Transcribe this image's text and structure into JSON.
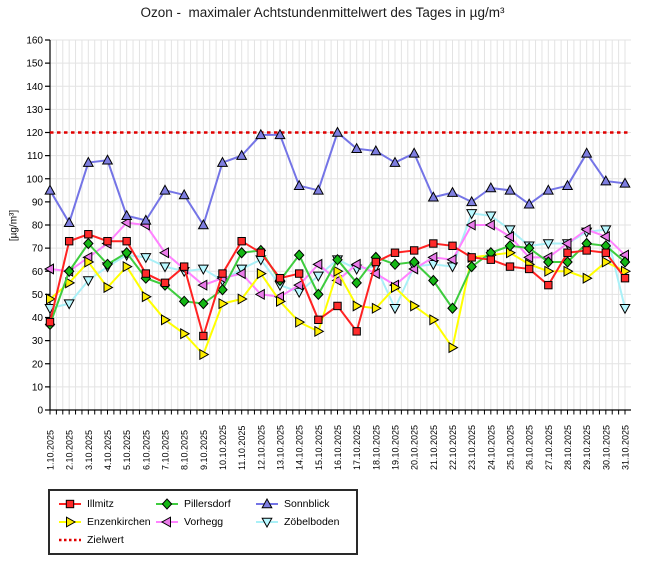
{
  "chart_data": {
    "type": "line",
    "title": "Ozon -  maximaler Achtstundenmittelwert des Tages in µg/m³",
    "ylabel": "[µg/m³]",
    "ylim": [
      0,
      160
    ],
    "ytick_step": 10,
    "grid": true,
    "legend_position": "bottom-left",
    "x": [
      "1.10.2025",
      "2.10.2025",
      "3.10.2025",
      "4.10.2025",
      "5.10.2025",
      "6.10.2025",
      "7.10.2025",
      "8.10.2025",
      "9.10.2025",
      "10.10.2025",
      "11.10.2025",
      "12.10.2025",
      "13.10.2025",
      "14.10.2025",
      "15.10.2025",
      "16.10.2025",
      "17.10.2025",
      "18.10.2025",
      "19.10.2025",
      "20.10.2025",
      "21.10.2025",
      "22.10.2025",
      "23.10.2025",
      "24.10.2025",
      "25.10.2025",
      "26.10.2025",
      "27.10.2025",
      "28.10.2025",
      "29.10.2025",
      "30.10.2025",
      "31.10.2025"
    ],
    "target_line": {
      "label": "Zielwert",
      "value": 120,
      "color": "#e00000",
      "style": "dotted"
    },
    "series": [
      {
        "name": "Illmitz",
        "marker": "square",
        "color": "#ff2222",
        "marker_color": "#ff2a2a",
        "values": [
          38,
          73,
          76,
          73,
          73,
          59,
          55,
          62,
          32,
          59,
          73,
          68,
          57,
          59,
          39,
          45,
          34,
          64,
          68,
          69,
          72,
          71,
          66,
          65,
          62,
          61,
          54,
          68,
          69,
          68,
          57
        ]
      },
      {
        "name": "Enzenkirchen",
        "marker": "triangle-right",
        "color": "#ffff00",
        "marker_color": "#ffee00",
        "values": [
          48,
          55,
          64,
          53,
          62,
          49,
          39,
          33,
          24,
          46,
          48,
          59,
          47,
          38,
          34,
          60,
          45,
          44,
          53,
          45,
          39,
          27,
          66,
          67,
          68,
          63,
          60,
          60,
          57,
          64,
          60
        ]
      },
      {
        "name": "Pillersdorf",
        "marker": "diamond",
        "color": "#3ecc3e",
        "marker_color": "#14b714",
        "values": [
          37,
          60,
          72,
          63,
          68,
          57,
          54,
          47,
          46,
          52,
          68,
          69,
          56,
          67,
          50,
          65,
          55,
          66,
          63,
          64,
          56,
          44,
          62,
          68,
          71,
          70,
          64,
          64,
          72,
          71,
          64
        ]
      },
      {
        "name": "Vorhegg",
        "marker": "triangle-left",
        "color": "#ff82ff",
        "marker_color": "#ea7bea",
        "values": [
          61,
          60,
          66,
          72,
          81,
          80,
          68,
          61,
          54,
          57,
          59,
          50,
          49,
          54,
          63,
          56,
          63,
          59,
          54,
          61,
          66,
          65,
          80,
          80,
          75,
          66,
          66,
          72,
          78,
          75,
          67
        ]
      },
      {
        "name": "Sonnblick",
        "marker": "triangle-up",
        "color": "#7474e6",
        "marker_color": "#7e7ee0",
        "values": [
          95,
          81,
          107,
          108,
          84,
          82,
          95,
          93,
          80,
          107,
          110,
          119,
          119,
          97,
          95,
          120,
          113,
          112,
          107,
          111,
          92,
          94,
          90,
          96,
          95,
          89,
          95,
          97,
          111,
          99,
          98
        ]
      },
      {
        "name": "Zöbelboden",
        "marker": "triangle-down",
        "color": "#a9f0f7",
        "marker_color": "#b8f8ff",
        "values": [
          44,
          46,
          56,
          62,
          67,
          66,
          62,
          60,
          61,
          56,
          61,
          65,
          54,
          51,
          58,
          65,
          61,
          62,
          44,
          62,
          63,
          62,
          85,
          84,
          78,
          71,
          72,
          72,
          77,
          78,
          44
        ]
      }
    ],
    "colors": {
      "grid": "#e3e3e3",
      "axis": "#000000",
      "background": "#ffffff"
    }
  }
}
